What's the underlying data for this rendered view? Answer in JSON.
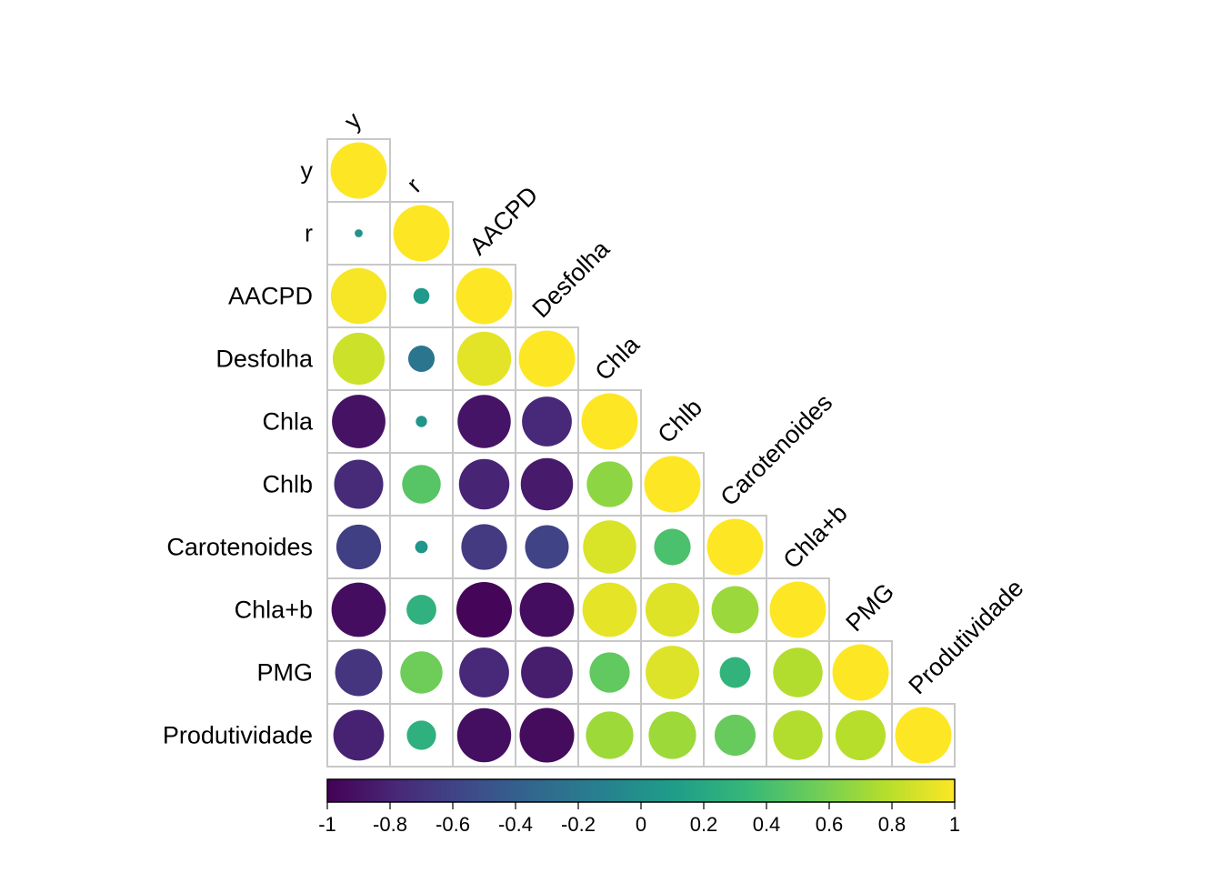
{
  "chart_data": {
    "type": "heatmap",
    "subtype": "correlation-matrix-lower-triangle-circles",
    "variables": [
      "y",
      "r",
      "AACPD",
      "Desfolha",
      "Chla",
      "Chlb",
      "Carotenoides",
      "Chla+b",
      "PMG",
      "Produtividade"
    ],
    "matrix": [
      [
        1.0
      ],
      [
        0.02,
        1.0
      ],
      [
        0.98,
        0.08,
        1.0
      ],
      [
        0.85,
        -0.22,
        0.92,
        1.0
      ],
      [
        -0.9,
        0.04,
        -0.89,
        -0.78,
        1.0
      ],
      [
        -0.76,
        0.47,
        -0.8,
        -0.86,
        0.66,
        1.0
      ],
      [
        -0.63,
        0.05,
        -0.66,
        -0.6,
        0.89,
        0.42,
        1.0
      ],
      [
        -0.93,
        0.28,
        -0.97,
        -0.93,
        0.93,
        0.91,
        0.7,
        1.0
      ],
      [
        -0.7,
        0.56,
        -0.78,
        -0.84,
        0.51,
        0.9,
        0.3,
        0.77,
        1.0
      ],
      [
        -0.81,
        0.27,
        -0.92,
        -0.94,
        0.71,
        0.71,
        0.53,
        0.77,
        0.79,
        1.0
      ]
    ],
    "colorbar": {
      "range": [
        -1,
        1
      ],
      "ticks": [
        "-1",
        "-0.8",
        "-0.6",
        "-0.4",
        "-0.2",
        "0",
        "0.2",
        "0.4",
        "0.6",
        "0.8",
        "1"
      ],
      "palette": [
        "#440154",
        "#482878",
        "#3E4A89",
        "#31688E",
        "#26828E",
        "#1F9E89",
        "#35B779",
        "#6DCD59",
        "#B4DE2C",
        "#FDE725"
      ]
    },
    "legend_position": "bottom"
  }
}
